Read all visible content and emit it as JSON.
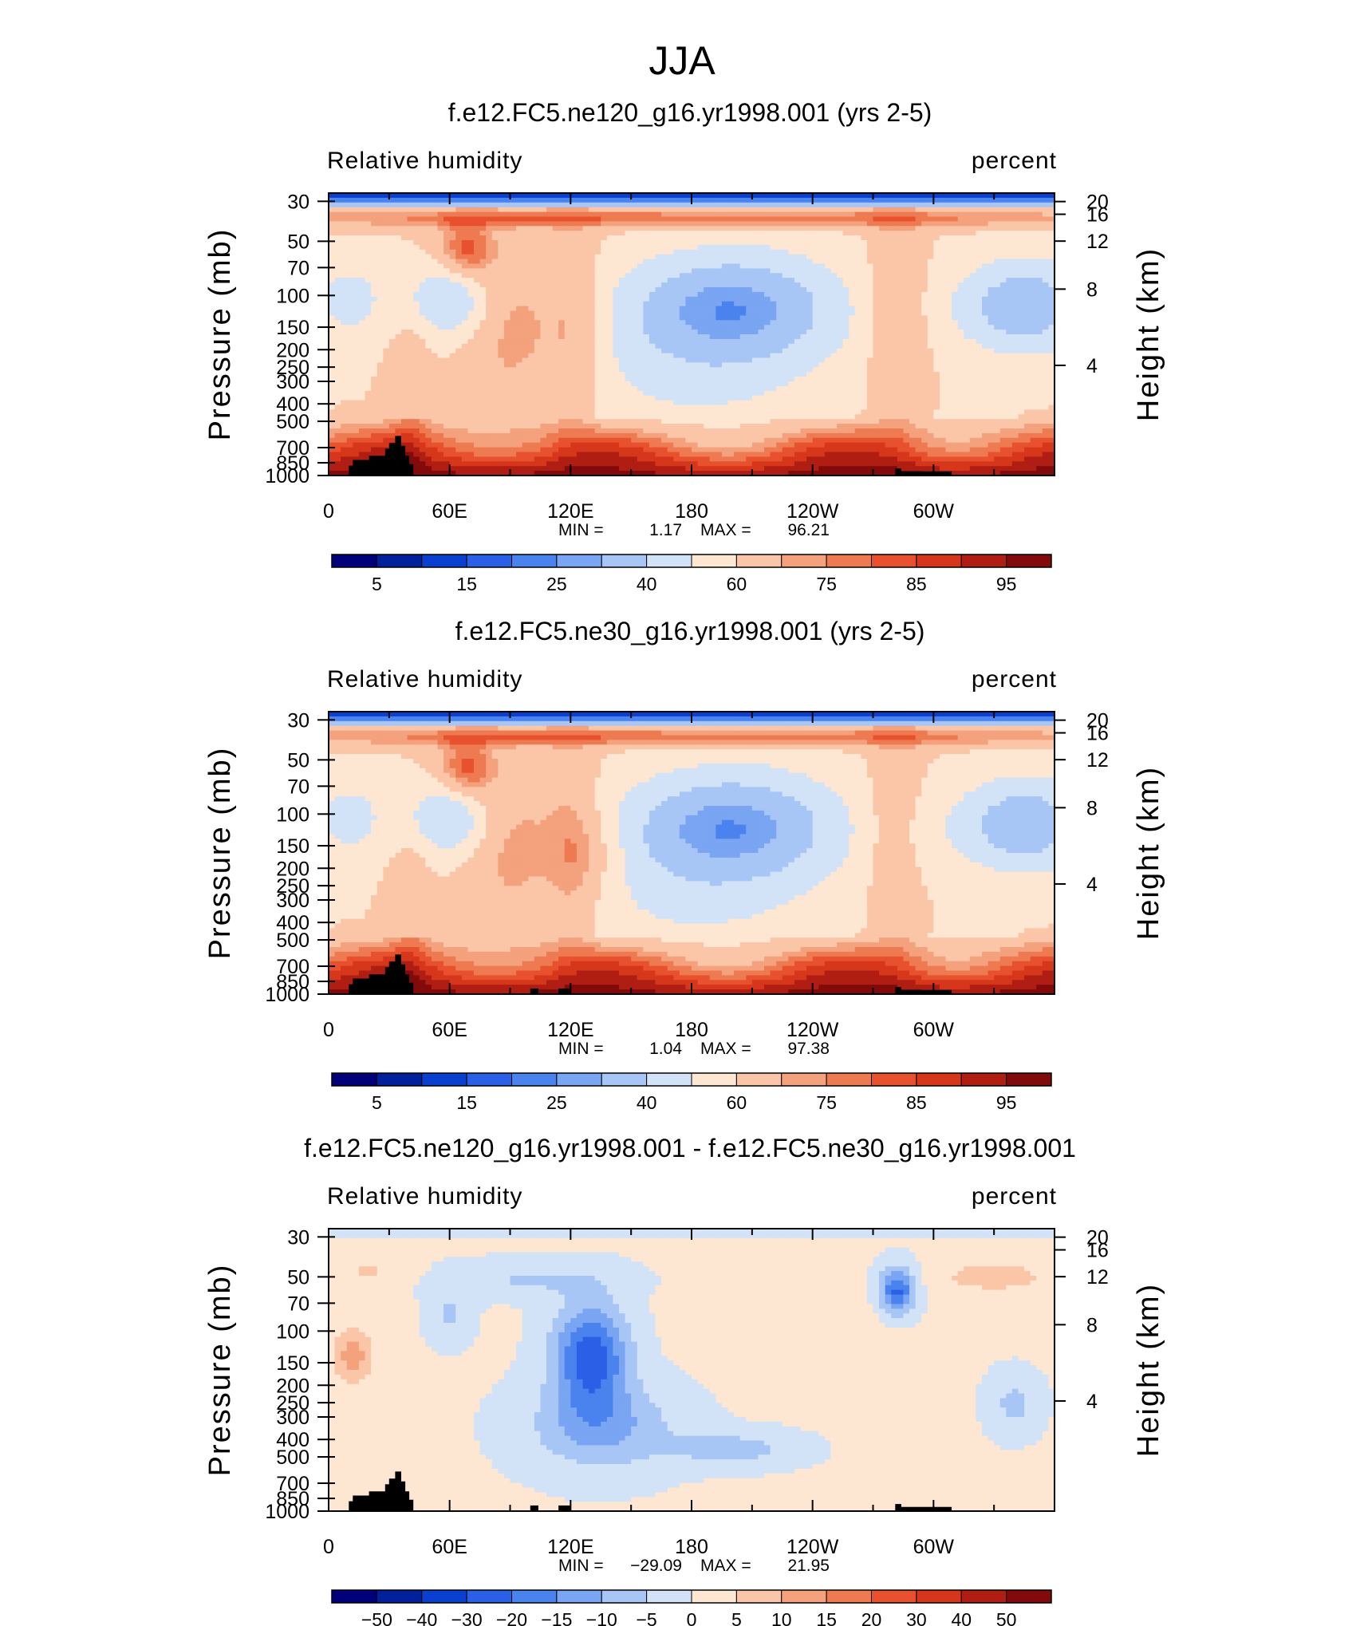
{
  "figure": {
    "title": "JJA"
  },
  "colors": {
    "rh_levels": [
      "#00007a",
      "#00209c",
      "#0a40cf",
      "#2a5fe6",
      "#4a82ee",
      "#79a5f2",
      "#a8c6f5",
      "#d2e3f7",
      "#fde6d2",
      "#fac6a7",
      "#f4a17d",
      "#ee7a52",
      "#e8512e",
      "#d6361a",
      "#b01e13",
      "#820a0a"
    ],
    "diff_levels": [
      "#00007a",
      "#00209c",
      "#0a40cf",
      "#2a5fe6",
      "#4a82ee",
      "#79a5f2",
      "#a8c6f5",
      "#d2e3f7",
      "#fde6d2",
      "#fac6a7",
      "#f4a17d",
      "#ee7a52",
      "#e8512e",
      "#d6361a",
      "#b01e13",
      "#820a0a"
    ],
    "topography": "#000000"
  },
  "chart_data": [
    {
      "type": "heatmap",
      "title": "f.e12.FC5.ne120_g16.yr1998.001 (yrs 2-5)",
      "variable": "Relative humidity",
      "units": "percent",
      "ylabel": "Pressure (mb)",
      "ylabel_right": "Height (km)",
      "x_ticks": [
        "0",
        "60E",
        "120E",
        "180",
        "120W",
        "60W"
      ],
      "y_ticks": [
        "30",
        "50",
        "70",
        "100",
        "150",
        "200",
        "250",
        "300",
        "400",
        "500",
        "700",
        "850",
        "1000"
      ],
      "height_ticks": [
        "20",
        "16",
        "12",
        "8",
        "4"
      ],
      "min_label": "MIN =",
      "min": "1.17",
      "max_label": "MAX =",
      "max": "96.21",
      "colorbar_labels": [
        "5",
        "15",
        "25",
        "40",
        "60",
        "75",
        "85",
        "95"
      ],
      "colorbar_levels": [
        5,
        10,
        15,
        20,
        25,
        30,
        40,
        50,
        60,
        70,
        75,
        80,
        85,
        90,
        95
      ],
      "field": "rh",
      "variant": 0
    },
    {
      "type": "heatmap",
      "title": "f.e12.FC5.ne30_g16.yr1998.001 (yrs 2-5)",
      "variable": "Relative humidity",
      "units": "percent",
      "ylabel": "Pressure (mb)",
      "ylabel_right": "Height (km)",
      "x_ticks": [
        "0",
        "60E",
        "120E",
        "180",
        "120W",
        "60W"
      ],
      "y_ticks": [
        "30",
        "50",
        "70",
        "100",
        "150",
        "200",
        "250",
        "300",
        "400",
        "500",
        "700",
        "850",
        "1000"
      ],
      "height_ticks": [
        "20",
        "16",
        "12",
        "8",
        "4"
      ],
      "min_label": "MIN =",
      "min": "1.04",
      "max_label": "MAX =",
      "max": "97.38",
      "colorbar_labels": [
        "5",
        "15",
        "25",
        "40",
        "60",
        "75",
        "85",
        "95"
      ],
      "colorbar_levels": [
        5,
        10,
        15,
        20,
        25,
        30,
        40,
        50,
        60,
        70,
        75,
        80,
        85,
        90,
        95
      ],
      "field": "rh",
      "variant": 1
    },
    {
      "type": "heatmap",
      "title": "f.e12.FC5.ne120_g16.yr1998.001 - f.e12.FC5.ne30_g16.yr1998.001",
      "variable": "Relative humidity",
      "units": "percent",
      "ylabel": "Pressure (mb)",
      "ylabel_right": "Height (km)",
      "x_ticks": [
        "0",
        "60E",
        "120E",
        "180",
        "120W",
        "60W"
      ],
      "y_ticks": [
        "30",
        "50",
        "70",
        "100",
        "150",
        "200",
        "250",
        "300",
        "400",
        "500",
        "700",
        "850",
        "1000"
      ],
      "height_ticks": [
        "20",
        "16",
        "12",
        "8",
        "4"
      ],
      "min_label": "MIN =",
      "min": "−29.09",
      "max_label": "MAX =",
      "max": "21.95",
      "colorbar_labels": [
        "−50",
        "−40",
        "−30",
        "−20",
        "−15",
        "−10",
        "−5",
        "0",
        "5",
        "10",
        "15",
        "20",
        "30",
        "40",
        "50"
      ],
      "colorbar_levels": [
        -50,
        -40,
        -30,
        -20,
        -15,
        -10,
        -5,
        0,
        5,
        10,
        15,
        20,
        30,
        40,
        50
      ],
      "field": "diff",
      "variant": 2
    }
  ]
}
